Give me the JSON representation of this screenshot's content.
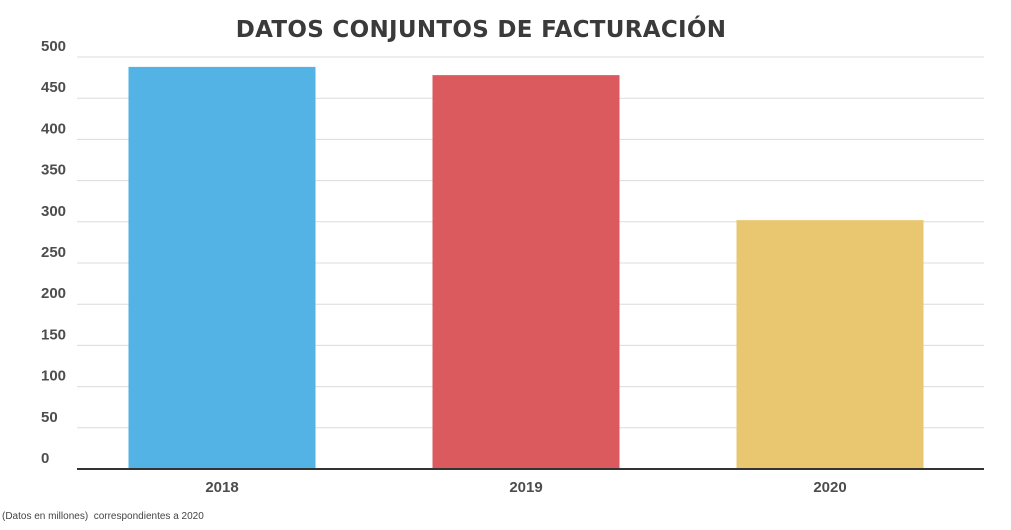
{
  "chart_data": {
    "type": "bar",
    "title": "DATOS CONJUNTOS DE FACTURACIÓN",
    "categories": [
      "2018",
      "2019",
      "2020"
    ],
    "values": [
      488,
      478,
      302
    ],
    "colors": [
      "#52b3e4",
      "#db5a5d",
      "#e9c670"
    ],
    "ylim": [
      0,
      500
    ],
    "yticks": [
      "0",
      "50",
      "100",
      "150",
      "200",
      "250",
      "300",
      "350",
      "400",
      "450",
      "500"
    ],
    "xlabel": "",
    "ylabel": "",
    "grid": true,
    "legend": "none"
  },
  "footnote": "(Datos en millones)  correspondientes a 2020"
}
